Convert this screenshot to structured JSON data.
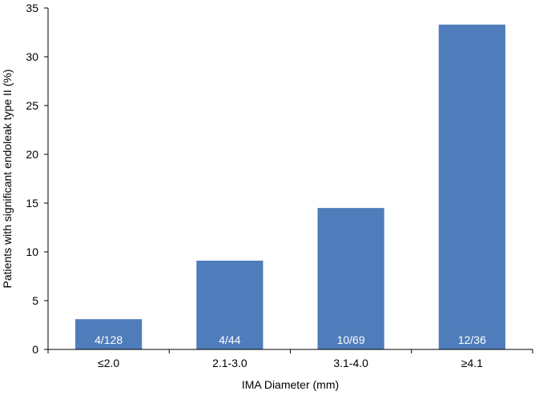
{
  "chart_data": {
    "type": "bar",
    "categories": [
      "≤2.0",
      "2.1-3.0",
      "3.1-4.0",
      "≥4.1"
    ],
    "values": [
      3.1,
      9.1,
      14.5,
      33.3
    ],
    "data_labels": [
      "4/128",
      "4/44",
      "10/69",
      "12/36"
    ],
    "xlabel": "IMA Diameter (mm)",
    "ylabel": "Patients with significant endoleak type II (%)",
    "ylim": [
      0,
      35
    ],
    "yticks": [
      0,
      5,
      10,
      15,
      20,
      25,
      30,
      35
    ],
    "grid": false,
    "bar_color": "#4f7dbb"
  }
}
